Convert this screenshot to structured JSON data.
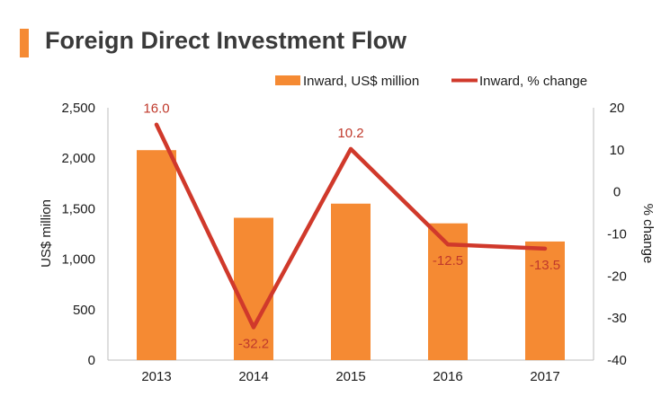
{
  "title": "Foreign Direct Investment Flow",
  "colors": {
    "accent": "#f58a33",
    "bar": "#f58a33",
    "line": "#d0392b",
    "label": "#c0392b",
    "axis": "#bdbdbd",
    "text": "#1a1a1a"
  },
  "chart_data": {
    "type": "bar",
    "categories": [
      "2013",
      "2014",
      "2015",
      "2016",
      "2017"
    ],
    "series": [
      {
        "name": "Inward, US$ million",
        "type": "bar",
        "axis": "left",
        "values": [
          2080,
          1410,
          1550,
          1355,
          1175
        ]
      },
      {
        "name": "Inward, % change",
        "type": "line",
        "axis": "right",
        "values": [
          16.0,
          -32.2,
          10.2,
          -12.5,
          -13.5
        ],
        "labels": [
          "16.0",
          "-32.2",
          "10.2",
          "-12.5",
          "-13.5"
        ]
      }
    ],
    "ylabel": "US$ million",
    "y2label": "% change",
    "ylim": [
      0,
      2500
    ],
    "y2lim": [
      -40,
      20
    ],
    "yticks": [
      "0",
      "500",
      "1,000",
      "1,500",
      "2,000",
      "2,500"
    ],
    "y2ticks": [
      "-40",
      "-30",
      "-20",
      "-10",
      "0",
      "10",
      "20"
    ],
    "legend": "top-right",
    "grid": false
  }
}
